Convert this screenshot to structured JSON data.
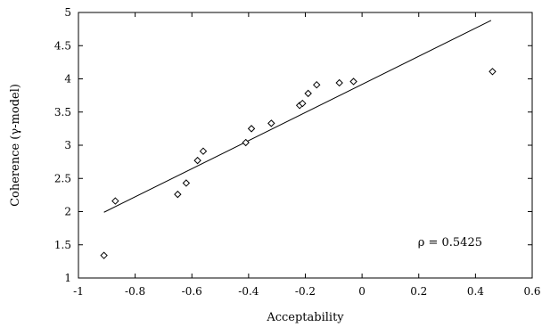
{
  "chart_data": {
    "type": "scatter",
    "xlabel": "Acceptability",
    "ylabel": "Coherence (γ-model)",
    "xlim": [
      -1,
      0.6
    ],
    "ylim": [
      1,
      5
    ],
    "xticks": [
      -1,
      -0.8,
      -0.6,
      -0.4,
      -0.2,
      0,
      0.2,
      0.4,
      0.6
    ],
    "yticks": [
      1,
      1.5,
      2,
      2.5,
      3,
      3.5,
      4,
      4.5,
      5
    ],
    "x_tick_labels": [
      "-1",
      "-0.8",
      "-0.6",
      "-0.4",
      "-0.2",
      "0",
      "0.2",
      "0.4",
      "0.6"
    ],
    "y_tick_labels": [
      "1",
      "1.5",
      "2",
      "2.5",
      "3",
      "3.5",
      "4",
      "4.5",
      "5"
    ],
    "grid": false,
    "marker": "diamond",
    "points": [
      {
        "x": -0.91,
        "y": 1.34
      },
      {
        "x": -0.87,
        "y": 2.16
      },
      {
        "x": -0.65,
        "y": 2.26
      },
      {
        "x": -0.62,
        "y": 2.43
      },
      {
        "x": -0.58,
        "y": 2.77
      },
      {
        "x": -0.56,
        "y": 2.91
      },
      {
        "x": -0.41,
        "y": 3.04
      },
      {
        "x": -0.39,
        "y": 3.25
      },
      {
        "x": -0.32,
        "y": 3.33
      },
      {
        "x": -0.22,
        "y": 3.6
      },
      {
        "x": -0.21,
        "y": 3.63
      },
      {
        "x": -0.19,
        "y": 3.78
      },
      {
        "x": -0.16,
        "y": 3.91
      },
      {
        "x": -0.08,
        "y": 3.94
      },
      {
        "x": -0.03,
        "y": 3.96
      },
      {
        "x": 0.46,
        "y": 4.11
      }
    ],
    "fit_line": {
      "x": [
        -0.91,
        0.455
      ],
      "y": [
        1.99,
        4.88
      ]
    },
    "annotation": "ρ = 0.5425"
  }
}
